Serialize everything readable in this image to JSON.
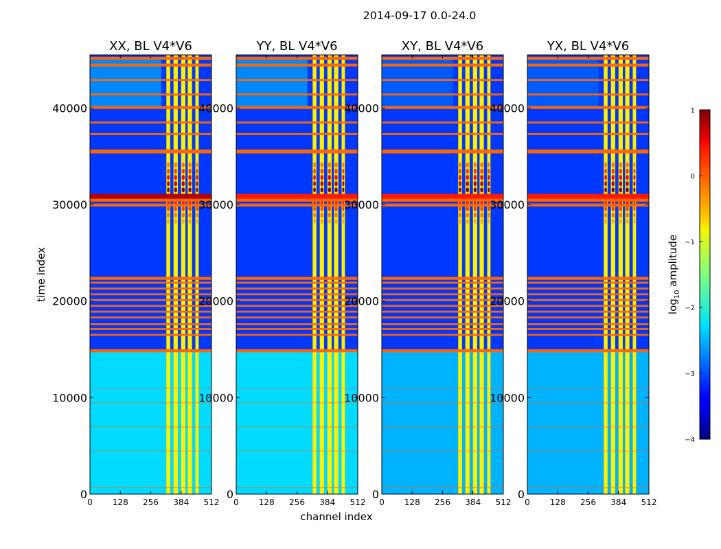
{
  "chart_data": {
    "type": "heatmap",
    "suptitle": "2014-09-17 0.0-24.0",
    "xlabel": "channel index",
    "ylabel": "time index",
    "xlim": [
      0,
      512
    ],
    "ylim": [
      0,
      45500
    ],
    "xticks": [
      0,
      128,
      256,
      384,
      512
    ],
    "yticks": [
      0,
      10000,
      20000,
      30000,
      40000
    ],
    "panels": [
      {
        "title": "XX, BL V4*V6",
        "rfi_variant": "xx"
      },
      {
        "title": "YY, BL V4*V6",
        "rfi_variant": "yy"
      },
      {
        "title": "XY, BL V4*V6",
        "rfi_variant": "cross"
      },
      {
        "title": "YX, BL V4*V6",
        "rfi_variant": "cross"
      }
    ],
    "colorbar": {
      "label_prefix": "log",
      "label_sub": "10",
      "label_suffix": " amplitude",
      "range": [
        -4,
        1
      ],
      "ticks": [
        1,
        0,
        -1,
        -2,
        -3,
        -4
      ],
      "tick_labels": [
        "1",
        "0",
        "−1",
        "−2",
        "−3",
        "−4"
      ],
      "colormap": "jet"
    },
    "flagged_time_bands": [
      [
        14700,
        15000
      ],
      [
        16400,
        16600
      ],
      [
        17000,
        17200
      ],
      [
        17500,
        17700
      ],
      [
        18200,
        18400
      ],
      [
        18800,
        19000
      ],
      [
        19400,
        19600
      ],
      [
        20000,
        20200
      ],
      [
        20600,
        20800
      ],
      [
        21200,
        21400
      ],
      [
        21800,
        22000
      ],
      [
        22200,
        22500
      ],
      [
        29800,
        30100
      ],
      [
        30300,
        30600
      ],
      [
        35300,
        35700
      ],
      [
        37200,
        37400
      ],
      [
        38400,
        38600
      ],
      [
        39900,
        40200
      ],
      [
        41300,
        41500
      ],
      [
        42800,
        43000
      ],
      [
        44300,
        44600
      ],
      [
        45000,
        45300
      ]
    ],
    "rfi_channel_ranges": [
      [
        322,
        338
      ],
      [
        352,
        370
      ],
      [
        384,
        402
      ],
      [
        412,
        430
      ],
      [
        444,
        458
      ]
    ],
    "strong_event_time_range": [
      28000,
      34500
    ],
    "colors": {
      "background": "#ffffff",
      "flag_band": "#ff6600",
      "low": "#00007f",
      "high": "#7f0000"
    }
  }
}
